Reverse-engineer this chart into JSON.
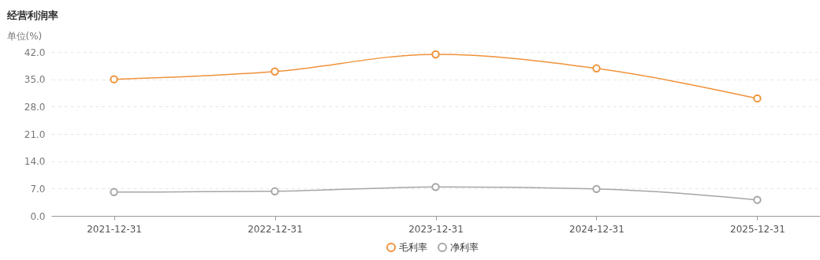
{
  "chart_data": {
    "type": "line",
    "title": "经营利润率",
    "ylabel": "单位(%)",
    "categories": [
      "2021-12-31",
      "2022-12-31",
      "2023-12-31",
      "2024-12-31",
      "2025-12-31"
    ],
    "series": [
      {
        "name": "毛利率",
        "color": "#f0923a",
        "values": [
          35.0,
          37.0,
          41.4,
          37.8,
          30.1
        ]
      },
      {
        "name": "净利率",
        "color": "#a6a6a6",
        "values": [
          6.1,
          6.3,
          7.4,
          6.9,
          4.1
        ]
      }
    ],
    "ylim": [
      0,
      42
    ],
    "yticks": [
      {
        "value": 0,
        "label": "0.0"
      },
      {
        "value": 7,
        "label": "7.0"
      },
      {
        "value": 14,
        "label": "14.0"
      },
      {
        "value": 21,
        "label": "21.0"
      },
      {
        "value": 28,
        "label": "28.0"
      },
      {
        "value": 35,
        "label": "35.0"
      },
      {
        "value": 42,
        "label": "42.0"
      }
    ],
    "grid": "y",
    "legend": "bottom",
    "marker": "circle",
    "line_style": "solid"
  }
}
